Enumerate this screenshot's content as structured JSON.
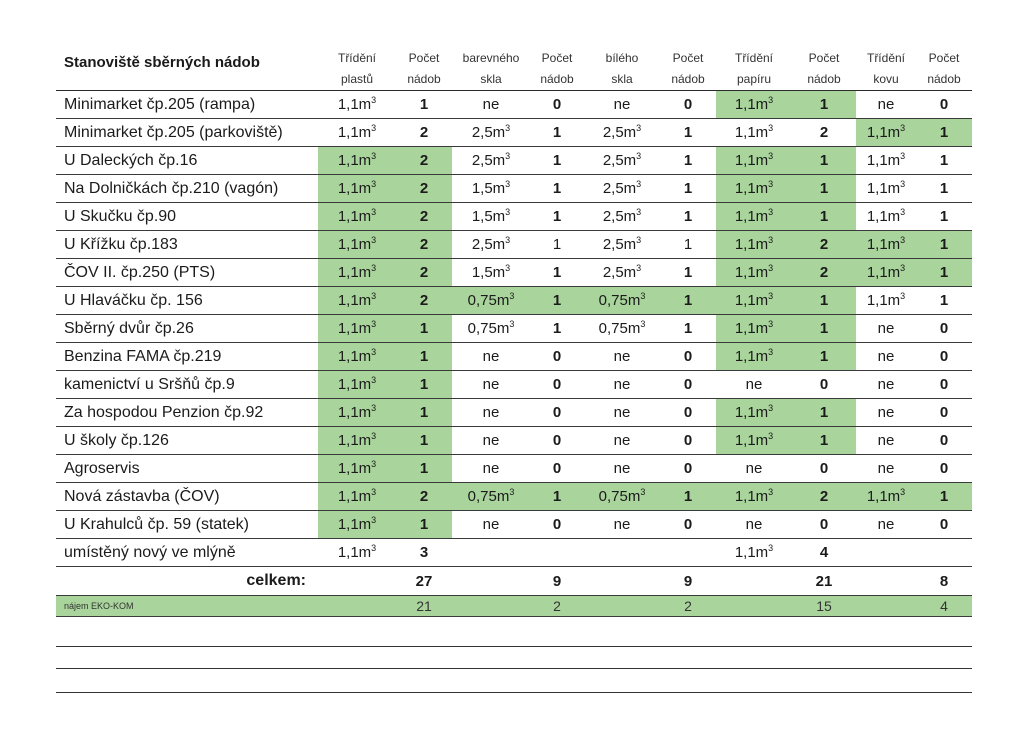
{
  "header": {
    "title": "Stanoviště sběrných nádob",
    "columns": [
      {
        "line1": "Třídění",
        "line2": "plastů"
      },
      {
        "line1": "Počet",
        "line2": "nádob"
      },
      {
        "line1": "barevného",
        "line2": "skla"
      },
      {
        "line1": "Počet",
        "line2": "nádob"
      },
      {
        "line1": "bílého",
        "line2": "skla"
      },
      {
        "line1": "Počet",
        "line2": "nádob"
      },
      {
        "line1": "Třídění",
        "line2": "papíru"
      },
      {
        "line1": "Počet",
        "line2": "nádob"
      },
      {
        "line1": "Třídění",
        "line2": "kovu"
      },
      {
        "line1": "Počet",
        "line2": "nádob"
      }
    ]
  },
  "rows": [
    {
      "name": "Minimarket čp.205 (rampa)",
      "cells": [
        {
          "v": "1,1m",
          "sup": "3"
        },
        {
          "v": "1"
        },
        {
          "v": "ne"
        },
        {
          "v": "0"
        },
        {
          "v": "ne"
        },
        {
          "v": "0"
        },
        {
          "v": "1,1m",
          "sup": "3",
          "g": true
        },
        {
          "v": "1",
          "g": true
        },
        {
          "v": "ne"
        },
        {
          "v": "0"
        }
      ]
    },
    {
      "name": "Minimarket čp.205 (parkoviště)",
      "cells": [
        {
          "v": "1,1m",
          "sup": "3"
        },
        {
          "v": "2"
        },
        {
          "v": "2,5m",
          "sup": "3"
        },
        {
          "v": "1"
        },
        {
          "v": "2,5m",
          "sup": "3"
        },
        {
          "v": "1"
        },
        {
          "v": "1,1m",
          "sup": "3"
        },
        {
          "v": "2"
        },
        {
          "v": "1,1m",
          "sup": "3",
          "g": true
        },
        {
          "v": "1",
          "g": true
        }
      ]
    },
    {
      "name": "U Daleckých čp.16",
      "cells": [
        {
          "v": "1,1m",
          "sup": "3",
          "g": true
        },
        {
          "v": "2",
          "g": true
        },
        {
          "v": "2,5m",
          "sup": "3"
        },
        {
          "v": "1"
        },
        {
          "v": "2,5m",
          "sup": "3"
        },
        {
          "v": "1"
        },
        {
          "v": "1,1m",
          "sup": "3",
          "g": true
        },
        {
          "v": "1",
          "g": true
        },
        {
          "v": "1,1m",
          "sup": "3"
        },
        {
          "v": "1"
        }
      ]
    },
    {
      "name": "Na Dolničkách čp.210 (vagón)",
      "cells": [
        {
          "v": "1,1m",
          "sup": "3",
          "g": true
        },
        {
          "v": "2",
          "g": true
        },
        {
          "v": "1,5m",
          "sup": "3"
        },
        {
          "v": "1"
        },
        {
          "v": "2,5m",
          "sup": "3"
        },
        {
          "v": "1"
        },
        {
          "v": "1,1m",
          "sup": "3",
          "g": true
        },
        {
          "v": "1",
          "g": true
        },
        {
          "v": "1,1m",
          "sup": "3"
        },
        {
          "v": "1"
        }
      ]
    },
    {
      "name": "U Skučku čp.90",
      "cells": [
        {
          "v": "1,1m",
          "sup": "3",
          "g": true
        },
        {
          "v": "2",
          "g": true
        },
        {
          "v": "1,5m",
          "sup": "3"
        },
        {
          "v": "1"
        },
        {
          "v": "2,5m",
          "sup": "3"
        },
        {
          "v": "1"
        },
        {
          "v": "1,1m",
          "sup": "3",
          "g": true
        },
        {
          "v": "1",
          "g": true
        },
        {
          "v": "1,1m",
          "sup": "3"
        },
        {
          "v": "1"
        }
      ]
    },
    {
      "name": "U Křížku čp.183",
      "cells": [
        {
          "v": "1,1m",
          "sup": "3",
          "g": true
        },
        {
          "v": "2",
          "g": true
        },
        {
          "v": "2,5m",
          "sup": "3"
        },
        {
          "v": "1",
          "plain": true
        },
        {
          "v": "2,5m",
          "sup": "3"
        },
        {
          "v": "1",
          "plain": true
        },
        {
          "v": "1,1m",
          "sup": "3",
          "g": true
        },
        {
          "v": "2",
          "g": true
        },
        {
          "v": "1,1m",
          "sup": "3",
          "g": true
        },
        {
          "v": "1",
          "g": true
        }
      ]
    },
    {
      "name": "ČOV II. čp.250 (PTS)",
      "cells": [
        {
          "v": "1,1m",
          "sup": "3",
          "g": true
        },
        {
          "v": "2",
          "g": true
        },
        {
          "v": "1,5m",
          "sup": "3"
        },
        {
          "v": "1"
        },
        {
          "v": "2,5m",
          "sup": "3"
        },
        {
          "v": "1"
        },
        {
          "v": "1,1m",
          "sup": "3",
          "g": true
        },
        {
          "v": "2",
          "g": true
        },
        {
          "v": "1,1m",
          "sup": "3",
          "g": true
        },
        {
          "v": "1",
          "g": true
        }
      ]
    },
    {
      "name": "U Hlaváčku čp. 156",
      "cells": [
        {
          "v": "1,1m",
          "sup": "3",
          "g": true
        },
        {
          "v": "2",
          "g": true
        },
        {
          "v": "0,75m",
          "sup": "3",
          "g": true
        },
        {
          "v": "1",
          "g": true
        },
        {
          "v": "0,75m",
          "sup": "3",
          "g": true
        },
        {
          "v": "1",
          "g": true
        },
        {
          "v": "1,1m",
          "sup": "3",
          "g": true
        },
        {
          "v": "1",
          "g": true
        },
        {
          "v": "1,1m",
          "sup": "3"
        },
        {
          "v": "1"
        }
      ]
    },
    {
      "name": "Sběrný dvůr čp.26",
      "cells": [
        {
          "v": "1,1m",
          "sup": "3",
          "g": true
        },
        {
          "v": "1",
          "g": true
        },
        {
          "v": "0,75m",
          "sup": "3"
        },
        {
          "v": "1"
        },
        {
          "v": "0,75m",
          "sup": "3"
        },
        {
          "v": "1"
        },
        {
          "v": "1,1m",
          "sup": "3",
          "g": true
        },
        {
          "v": "1",
          "g": true
        },
        {
          "v": "ne"
        },
        {
          "v": "0"
        }
      ]
    },
    {
      "name": "Benzina FAMA čp.219",
      "cells": [
        {
          "v": "1,1m",
          "sup": "3",
          "g": true
        },
        {
          "v": "1",
          "g": true
        },
        {
          "v": "ne"
        },
        {
          "v": "0"
        },
        {
          "v": "ne"
        },
        {
          "v": "0"
        },
        {
          "v": "1,1m",
          "sup": "3",
          "g": true
        },
        {
          "v": "1",
          "g": true
        },
        {
          "v": "ne"
        },
        {
          "v": "0"
        }
      ]
    },
    {
      "name": "kamenictví u Sršňů čp.9",
      "cells": [
        {
          "v": "1,1m",
          "sup": "3",
          "g": true
        },
        {
          "v": "1",
          "g": true
        },
        {
          "v": "ne"
        },
        {
          "v": "0"
        },
        {
          "v": "ne"
        },
        {
          "v": "0"
        },
        {
          "v": "ne"
        },
        {
          "v": "0"
        },
        {
          "v": "ne"
        },
        {
          "v": "0"
        }
      ]
    },
    {
      "name": "Za hospodou Penzion čp.92",
      "cells": [
        {
          "v": "1,1m",
          "sup": "3",
          "g": true
        },
        {
          "v": "1",
          "g": true
        },
        {
          "v": "ne"
        },
        {
          "v": "0"
        },
        {
          "v": "ne"
        },
        {
          "v": "0"
        },
        {
          "v": "1,1m",
          "sup": "3",
          "g": true
        },
        {
          "v": "1",
          "g": true
        },
        {
          "v": "ne"
        },
        {
          "v": "0"
        }
      ]
    },
    {
      "name": "U školy čp.126",
      "cells": [
        {
          "v": "1,1m",
          "sup": "3",
          "g": true
        },
        {
          "v": "1",
          "g": true
        },
        {
          "v": "ne"
        },
        {
          "v": "0"
        },
        {
          "v": "ne"
        },
        {
          "v": "0"
        },
        {
          "v": "1,1m",
          "sup": "3",
          "g": true
        },
        {
          "v": "1",
          "g": true
        },
        {
          "v": "ne"
        },
        {
          "v": "0"
        }
      ]
    },
    {
      "name": "Agroservis",
      "cells": [
        {
          "v": "1,1m",
          "sup": "3",
          "g": true
        },
        {
          "v": "1",
          "g": true
        },
        {
          "v": "ne"
        },
        {
          "v": "0"
        },
        {
          "v": "ne"
        },
        {
          "v": "0"
        },
        {
          "v": "ne"
        },
        {
          "v": "0"
        },
        {
          "v": "ne"
        },
        {
          "v": "0"
        }
      ]
    },
    {
      "name": "Nová zástavba (ČOV)",
      "cells": [
        {
          "v": "1,1m",
          "sup": "3",
          "g": true
        },
        {
          "v": "2",
          "g": true
        },
        {
          "v": "0,75m",
          "sup": "3",
          "g": true
        },
        {
          "v": "1",
          "g": true
        },
        {
          "v": "0,75m",
          "sup": "3",
          "g": true
        },
        {
          "v": "1",
          "g": true
        },
        {
          "v": "1,1m",
          "sup": "3",
          "g": true
        },
        {
          "v": "2",
          "g": true
        },
        {
          "v": "1,1m",
          "sup": "3",
          "g": true
        },
        {
          "v": "1",
          "g": true
        }
      ]
    },
    {
      "name": "U Krahulců čp. 59 (statek)",
      "cells": [
        {
          "v": "1,1m",
          "sup": "3",
          "g": true
        },
        {
          "v": "1",
          "g": true
        },
        {
          "v": "ne"
        },
        {
          "v": "0"
        },
        {
          "v": "ne"
        },
        {
          "v": "0"
        },
        {
          "v": "ne"
        },
        {
          "v": "0"
        },
        {
          "v": "ne"
        },
        {
          "v": "0"
        }
      ]
    },
    {
      "name": "umístěný nový ve mlýně",
      "cells": [
        {
          "v": "1,1m",
          "sup": "3"
        },
        {
          "v": "3"
        },
        {
          "v": ""
        },
        {
          "v": ""
        },
        {
          "v": ""
        },
        {
          "v": ""
        },
        {
          "v": "1,1m",
          "sup": "3"
        },
        {
          "v": "4"
        },
        {
          "v": ""
        },
        {
          "v": ""
        }
      ]
    }
  ],
  "totals": {
    "label": "celkem:",
    "values": [
      "",
      "27",
      "",
      "9",
      "",
      "9",
      "",
      "21",
      "",
      "8"
    ]
  },
  "rent": {
    "label": "nájem EKO-KOM",
    "values": [
      "",
      "21",
      "",
      "2",
      "",
      "2",
      "",
      "15",
      "",
      "4"
    ]
  },
  "colors": {
    "highlight": "#a9d59c"
  }
}
